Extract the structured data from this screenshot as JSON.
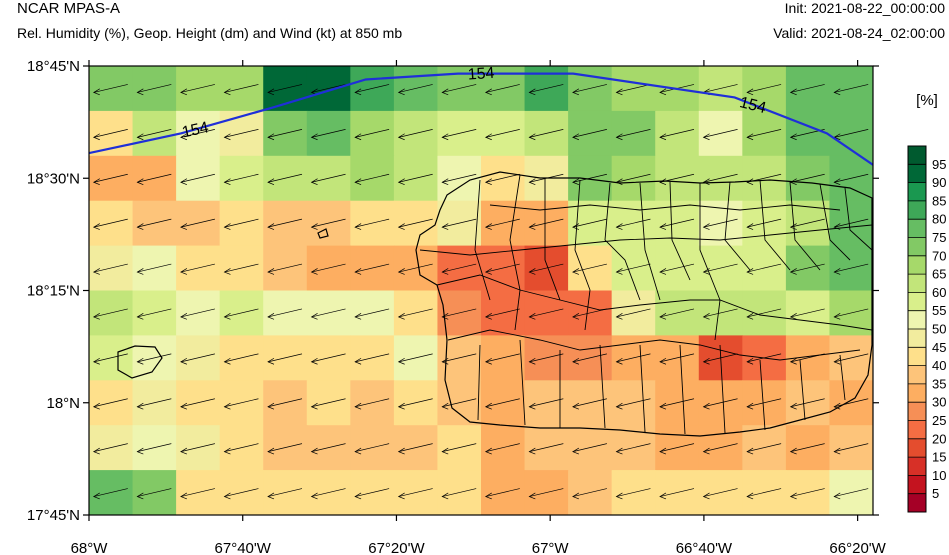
{
  "header": {
    "model": "NCAR MPAS-A",
    "description": "Rel. Humidity (%), Geop. Height (dm) and Wind (kt) at 850 mb",
    "init": "Init: 2021-08-22_00:00:00",
    "valid": "Valid: 2021-08-24_02:00:00"
  },
  "colorbar": {
    "unit": "[%]",
    "labels": [
      "5",
      "10",
      "15",
      "20",
      "25",
      "30",
      "35",
      "40",
      "45",
      "50",
      "55",
      "60",
      "65",
      "70",
      "75",
      "80",
      "85",
      "90",
      "95"
    ],
    "colors": [
      "#a50026",
      "#c4131f",
      "#d73027",
      "#e44d2e",
      "#f46d43",
      "#f68f56",
      "#fdae61",
      "#fdc47a",
      "#fee08b",
      "#f2ec9e",
      "#eef5b0",
      "#d9ef8b",
      "#c2e57a",
      "#a6d96a",
      "#82c965",
      "#66bd63",
      "#3ea858",
      "#1a9850",
      "#006837",
      "#005a2f"
    ]
  },
  "map": {
    "lon_labels": [
      "68°W",
      "67°40'W",
      "67°20'W",
      "67°W",
      "66°40'W",
      "66°20'W"
    ],
    "lat_labels": [
      "18°45'N",
      "18°30'N",
      "18°15'N",
      "18°N",
      "17°45'N"
    ],
    "contour_label": "154",
    "contour_color": "#1f2fd8"
  },
  "chart_data": {
    "type": "heatmap",
    "title": "Rel. Humidity (%), Geop. Height (dm) and Wind (kt) at 850 mb",
    "value_unit": "%",
    "lon_range": [
      -68.0,
      -66.3
    ],
    "lat_range": [
      17.75,
      18.75
    ],
    "grid_columns": 18,
    "grid_rows": 10,
    "rh_grid": [
      [
        70,
        70,
        65,
        65,
        90,
        90,
        80,
        75,
        70,
        70,
        80,
        70,
        65,
        65,
        60,
        65,
        75,
        75
      ],
      [
        40,
        60,
        50,
        45,
        70,
        75,
        65,
        60,
        55,
        55,
        60,
        70,
        70,
        60,
        50,
        65,
        75,
        75
      ],
      [
        30,
        30,
        50,
        55,
        60,
        60,
        65,
        60,
        50,
        40,
        45,
        70,
        65,
        60,
        60,
        60,
        70,
        75
      ],
      [
        40,
        35,
        35,
        40,
        35,
        35,
        40,
        40,
        45,
        30,
        30,
        55,
        55,
        55,
        50,
        55,
        60,
        75
      ],
      [
        45,
        50,
        40,
        40,
        35,
        30,
        30,
        30,
        20,
        20,
        15,
        40,
        55,
        55,
        55,
        55,
        70,
        75
      ],
      [
        60,
        55,
        50,
        55,
        50,
        50,
        50,
        40,
        25,
        20,
        20,
        20,
        45,
        60,
        60,
        60,
        55,
        65
      ],
      [
        55,
        50,
        45,
        40,
        40,
        40,
        40,
        50,
        35,
        30,
        25,
        25,
        30,
        30,
        15,
        20,
        30,
        35
      ],
      [
        40,
        45,
        40,
        40,
        35,
        40,
        35,
        40,
        35,
        30,
        35,
        35,
        35,
        30,
        30,
        30,
        35,
        30
      ],
      [
        45,
        50,
        45,
        40,
        35,
        35,
        35,
        35,
        40,
        30,
        35,
        35,
        35,
        30,
        30,
        35,
        30,
        35
      ],
      [
        75,
        70,
        40,
        40,
        40,
        40,
        40,
        40,
        40,
        30,
        30,
        35,
        40,
        40,
        40,
        40,
        40,
        50
      ]
    ],
    "geopotential_height_contour_dm": 154,
    "contour_path_lonlat": [
      [
        -68.0,
        18.556
      ],
      [
        -67.8,
        18.6
      ],
      [
        -67.6,
        18.658
      ],
      [
        -67.4,
        18.72
      ],
      [
        -67.2,
        18.733
      ],
      [
        -66.95,
        18.733
      ],
      [
        -66.6,
        18.68
      ],
      [
        -66.4,
        18.6
      ],
      [
        -66.3,
        18.53
      ]
    ],
    "wind_direction": "easterly (arrows pointing west)"
  }
}
